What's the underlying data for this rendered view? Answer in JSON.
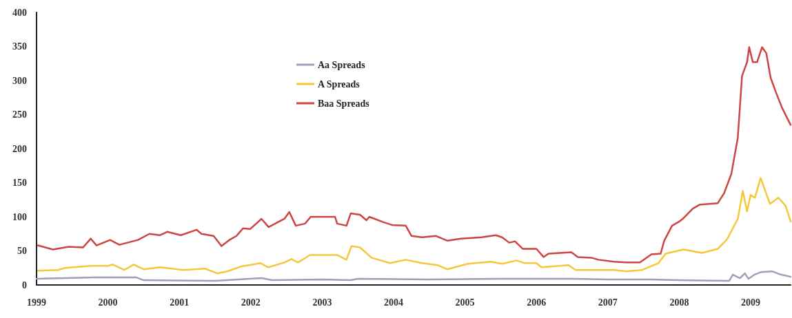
{
  "chart_data": {
    "type": "line",
    "xlim": [
      1999,
      2009.56
    ],
    "xticks": [
      1999,
      2000,
      2001,
      2002,
      2003,
      2004,
      2005,
      2006,
      2007,
      2008,
      2009
    ],
    "ylim": [
      0,
      400
    ],
    "yticks": [
      0,
      50,
      100,
      150,
      200,
      250,
      300,
      350,
      400
    ],
    "grid": false,
    "legend": "top left",
    "marker": "none",
    "line_style": "solid",
    "series": [
      {
        "name": "Aa Spreads",
        "color": "#9aa1b8",
        "x": [
          1999,
          1999.8,
          2000.4,
          2000.5,
          2001.5,
          2002.15,
          2002.3,
          2003,
          2003.4,
          2003.5,
          2004.5,
          2005.5,
          2006.5,
          2007,
          2007.6,
          2008,
          2008.7,
          2008.75,
          2008.85,
          2008.92,
          2008.97,
          2009.05,
          2009.15,
          2009.3,
          2009.4,
          2009.56
        ],
        "values": [
          9,
          11,
          11,
          7,
          6,
          10,
          7,
          8,
          7,
          9,
          8,
          9,
          9,
          8,
          8,
          7,
          6,
          15,
          10,
          17,
          9,
          15,
          19,
          20,
          16,
          12
        ]
      },
      {
        "name": "A Spreads",
        "color": "#f7c63a",
        "x": [
          1999.02,
          1999.3,
          1999.4,
          1999.76,
          2000.0,
          2000.07,
          2000.23,
          2000.36,
          2000.5,
          2000.73,
          2001.05,
          2001.36,
          2001.53,
          2001.67,
          2001.86,
          2002.14,
          2002.22,
          2002.25,
          2002.47,
          2002.57,
          2002.66,
          2002.83,
          2003.21,
          2003.34,
          2003.41,
          2003.53,
          2003.69,
          2003.95,
          2004.17,
          2004.4,
          2004.62,
          2004.75,
          2005.04,
          2005.36,
          2005.52,
          2005.72,
          2005.84,
          2006.0,
          2006.07,
          2006.45,
          2006.55,
          2007.09,
          2007.26,
          2007.48,
          2007.71,
          2007.81,
          2008.06,
          2008.32,
          2008.54,
          2008.67,
          2008.82,
          2008.89,
          2008.95,
          2009.0,
          2009.06,
          2009.14,
          2009.27,
          2009.39,
          2009.49,
          2009.56
        ],
        "values": [
          21,
          22,
          25,
          28,
          28,
          30,
          22,
          30,
          23,
          26,
          22,
          24,
          17,
          20,
          27,
          32,
          27,
          26,
          33,
          38,
          33,
          44,
          44,
          37,
          57,
          55,
          40,
          32,
          37,
          32,
          29,
          23,
          31,
          34,
          31,
          36,
          32,
          32,
          26,
          29,
          22,
          22,
          20,
          22,
          32,
          46,
          52,
          47,
          53,
          67,
          97,
          138,
          108,
          132,
          128,
          157,
          119,
          128,
          116,
          93
        ]
      },
      {
        "name": "Baa Spreads",
        "color": "#cc4444",
        "x": [
          1999.02,
          1999.23,
          1999.45,
          1999.65,
          1999.76,
          1999.84,
          2000.03,
          2000.16,
          2000.42,
          2000.58,
          2000.73,
          2000.83,
          2001.02,
          2001.24,
          2001.31,
          2001.48,
          2001.59,
          2001.7,
          2001.8,
          2001.89,
          2001.99,
          2002.15,
          2002.25,
          2002.47,
          2002.54,
          2002.63,
          2002.76,
          2002.84,
          2003.02,
          2003.18,
          2003.21,
          2003.34,
          2003.4,
          2003.53,
          2003.62,
          2003.66,
          2003.86,
          2003.98,
          2004.17,
          2004.25,
          2004.4,
          2004.59,
          2004.75,
          2004.94,
          2005.23,
          2005.43,
          2005.52,
          2005.62,
          2005.7,
          2005.81,
          2006.0,
          2006.1,
          2006.17,
          2006.49,
          2006.58,
          2006.77,
          2006.87,
          2007.09,
          2007.26,
          2007.45,
          2007.61,
          2007.74,
          2007.79,
          2007.9,
          2008.0,
          2008.06,
          2008.19,
          2008.29,
          2008.54,
          2008.63,
          2008.73,
          2008.82,
          2008.88,
          2008.95,
          2008.98,
          2009.03,
          2009.09,
          2009.16,
          2009.22,
          2009.28,
          2009.35,
          2009.44,
          2009.54,
          2009.56
        ],
        "values": [
          58,
          52,
          56,
          55,
          68,
          58,
          66,
          59,
          66,
          75,
          73,
          78,
          73,
          81,
          75,
          72,
          57,
          66,
          72,
          83,
          82,
          97,
          85,
          97,
          107,
          87,
          90,
          100,
          100,
          100,
          90,
          87,
          105,
          103,
          95,
          100,
          92,
          88,
          87,
          72,
          70,
          72,
          65,
          68,
          70,
          73,
          70,
          62,
          64,
          53,
          53,
          41,
          46,
          48,
          41,
          40,
          37,
          34,
          33,
          33,
          45,
          46,
          65,
          87,
          93,
          98,
          112,
          118,
          120,
          135,
          163,
          216,
          307,
          327,
          349,
          327,
          327,
          349,
          340,
          304,
          284,
          260,
          239,
          235
        ]
      }
    ]
  }
}
